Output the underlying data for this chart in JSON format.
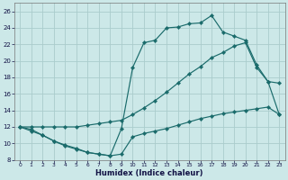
{
  "xlabel": "Humidex (Indice chaleur)",
  "bg_color": "#cce8e8",
  "grid_color": "#aacccc",
  "line_color": "#1a6b6b",
  "xlim": [
    -0.5,
    23.5
  ],
  "ylim": [
    8,
    27
  ],
  "xticks": [
    0,
    1,
    2,
    3,
    4,
    5,
    6,
    7,
    8,
    9,
    10,
    11,
    12,
    13,
    14,
    15,
    16,
    17,
    18,
    19,
    20,
    21,
    22,
    23
  ],
  "yticks": [
    8,
    10,
    12,
    14,
    16,
    18,
    20,
    22,
    24,
    26
  ],
  "line1_x": [
    0,
    1,
    2,
    3,
    4,
    5,
    6,
    7,
    8,
    9,
    10,
    11,
    12,
    13,
    14,
    15,
    16,
    17,
    18,
    19,
    20,
    21,
    22,
    23
  ],
  "line1_y": [
    12,
    11.5,
    11.0,
    10.3,
    9.7,
    9.3,
    8.9,
    8.7,
    8.5,
    8.7,
    10.8,
    11.2,
    11.5,
    11.8,
    12.2,
    12.6,
    13.0,
    13.3,
    13.6,
    13.8,
    14.0,
    14.2,
    14.4,
    13.5
  ],
  "line2_x": [
    0,
    1,
    2,
    3,
    4,
    5,
    6,
    7,
    8,
    9,
    10,
    11,
    12,
    13,
    14,
    15,
    16,
    17,
    18,
    19,
    20,
    21,
    22,
    23
  ],
  "line2_y": [
    12,
    12,
    12,
    12,
    12,
    12,
    12.2,
    12.4,
    12.6,
    12.8,
    13.5,
    14.3,
    15.2,
    16.2,
    17.3,
    18.4,
    19.3,
    20.4,
    21.0,
    21.8,
    22.2,
    19.2,
    17.5,
    17.3
  ],
  "line3_x": [
    0,
    1,
    2,
    3,
    4,
    5,
    6,
    7,
    8,
    9,
    10,
    11,
    12,
    13,
    14,
    15,
    16,
    17,
    18,
    19,
    20,
    21,
    22,
    23
  ],
  "line3_y": [
    12,
    11.7,
    11.0,
    10.3,
    9.8,
    9.4,
    8.9,
    8.7,
    8.5,
    11.8,
    19.2,
    22.2,
    22.5,
    24.0,
    24.1,
    24.5,
    24.6,
    25.5,
    23.5,
    23.0,
    22.5,
    19.5,
    17.5,
    13.5
  ]
}
